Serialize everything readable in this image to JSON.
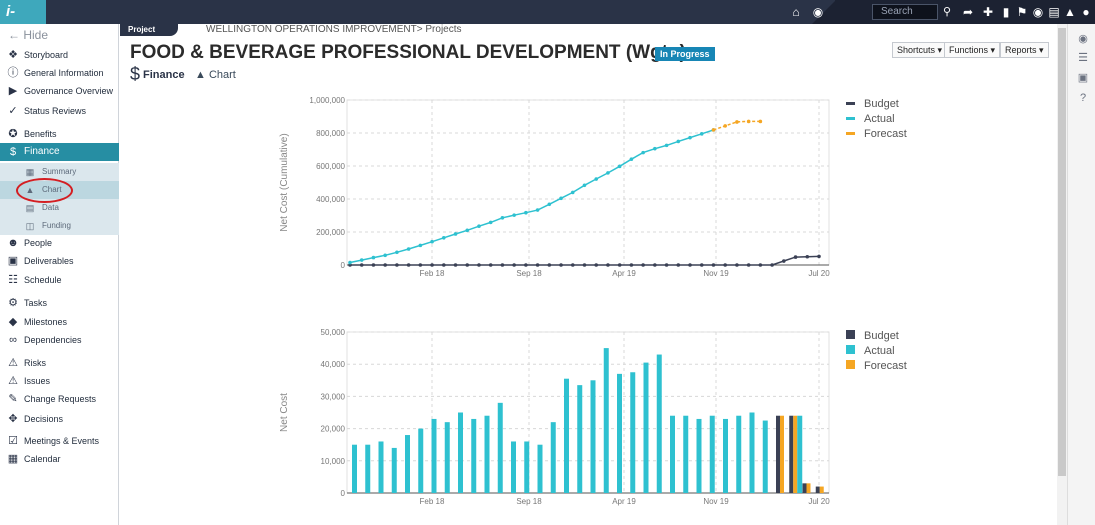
{
  "app": {
    "logo": "i-Sign"
  },
  "topbar": {
    "search_placeholder": "Search",
    "icons": [
      "home-icon",
      "globe-icon",
      "search-icon",
      "share-icon",
      "plus-icon",
      "bookmark-icon",
      "flag-icon",
      "chat-icon",
      "document-icon",
      "bell-icon",
      "user-icon"
    ]
  },
  "sidebar": {
    "hide": "Hide",
    "items": [
      {
        "label": "Storyboard",
        "icon": "storyboard-icon"
      },
      {
        "label": "General Information",
        "icon": "info-icon"
      },
      {
        "label": "Governance Overview",
        "icon": "governance-icon"
      },
      {
        "label": "Status Reviews",
        "icon": "check-icon"
      },
      {
        "label": "Benefits",
        "icon": "award-icon"
      },
      {
        "label": "Finance",
        "icon": "dollar-icon",
        "active": true
      },
      {
        "label": "People",
        "icon": "people-icon"
      },
      {
        "label": "Deliverables",
        "icon": "truck-icon"
      },
      {
        "label": "Schedule",
        "icon": "schedule-icon"
      },
      {
        "label": "Tasks",
        "icon": "tasks-icon"
      },
      {
        "label": "Milestones",
        "icon": "diamond-icon"
      },
      {
        "label": "Dependencies",
        "icon": "link-icon"
      },
      {
        "label": "Risks",
        "icon": "warning-icon"
      },
      {
        "label": "Issues",
        "icon": "alert-icon"
      },
      {
        "label": "Change Requests",
        "icon": "change-icon"
      },
      {
        "label": "Decisions",
        "icon": "decision-icon"
      },
      {
        "label": "Meetings & Events",
        "icon": "calendar-check-icon"
      },
      {
        "label": "Calendar",
        "icon": "calendar-icon"
      }
    ],
    "finance_sub": [
      {
        "label": "Summary",
        "icon": "grid-icon"
      },
      {
        "label": "Chart",
        "icon": "area-chart-icon",
        "selected": true
      },
      {
        "label": "Data",
        "icon": "table-icon"
      },
      {
        "label": "Funding",
        "icon": "database-icon"
      }
    ]
  },
  "header": {
    "tag": "Project",
    "breadcrumb": "WELLINGTON OPERATIONS IMPROVEMENT> Projects",
    "title": "FOOD & BEVERAGE PROFESSIONAL DEVELOPMENT (Wgtn)",
    "status": "In Progress",
    "buttons": [
      "Shortcuts ▾",
      "Functions ▾",
      "Reports ▾"
    ],
    "section": "Finance",
    "subsection": "Chart"
  },
  "colors": {
    "budget": "#3b4155",
    "actual": "#2ec1d0",
    "forecast": "#f5a623",
    "accent": "#268ea3",
    "topbar": "#2a3347"
  },
  "chart_data": [
    {
      "type": "line",
      "ylabel": "Net Cost (Cumulative)",
      "ylim": [
        0,
        1000000
      ],
      "yticks": [
        "0",
        "200,000",
        "400,000",
        "600,000",
        "800,000",
        "1,000,000"
      ],
      "x_tick_labels": [
        "Feb 18",
        "Sep 18",
        "Apr 19",
        "Nov 19",
        "Jul 20"
      ],
      "legend": [
        "Budget",
        "Actual",
        "Forecast"
      ],
      "legend_position": "right",
      "grid": true,
      "series": [
        {
          "name": "Budget",
          "values": [
            0,
            0,
            0,
            0,
            0,
            0,
            0,
            0,
            0,
            0,
            0,
            0,
            0,
            0,
            0,
            0,
            0,
            0,
            0,
            0,
            0,
            0,
            0,
            0,
            0,
            0,
            0,
            0,
            0,
            0,
            0,
            0,
            0,
            0,
            0,
            0,
            0,
            24000,
            48000,
            50000,
            52000
          ]
        },
        {
          "name": "Actual",
          "values": [
            15000,
            30000,
            45000,
            59000,
            77000,
            97000,
            119000,
            141000,
            165000,
            188000,
            210000,
            235000,
            258000,
            286000,
            302000,
            317000,
            333000,
            368000,
            404000,
            440000,
            483000,
            521000,
            558000,
            598000,
            641000,
            681000,
            705000,
            725000,
            749000,
            772000,
            795000,
            819000
          ]
        },
        {
          "name": "Forecast",
          "start_index": 31,
          "values": [
            819000,
            843000,
            867000,
            870000,
            870000
          ]
        }
      ]
    },
    {
      "type": "bar",
      "ylabel": "Net Cost",
      "ylim": [
        0,
        50000
      ],
      "yticks": [
        "0",
        "10,000",
        "20,000",
        "30,000",
        "40,000",
        "50,000"
      ],
      "x_tick_labels": [
        "Feb 18",
        "Sep 18",
        "Apr 19",
        "Nov 19",
        "Jul 20"
      ],
      "legend": [
        "Budget",
        "Actual",
        "Forecast"
      ],
      "legend_position": "right",
      "grid": true,
      "series": [
        {
          "name": "Budget",
          "values": [
            0,
            0,
            0,
            0,
            0,
            0,
            0,
            0,
            0,
            0,
            0,
            0,
            0,
            0,
            0,
            0,
            0,
            0,
            0,
            0,
            0,
            0,
            0,
            0,
            0,
            0,
            0,
            0,
            0,
            0,
            0,
            0,
            24000,
            24000,
            3000,
            2000
          ]
        },
        {
          "name": "Actual",
          "values": [
            15000,
            15000,
            16000,
            14000,
            18000,
            20000,
            23000,
            22000,
            25000,
            23000,
            24000,
            28000,
            16000,
            16000,
            15000,
            22000,
            35500,
            33500,
            35000,
            45000,
            37000,
            37500,
            40500,
            43000,
            24000,
            24000,
            23000,
            24000,
            23000,
            24000,
            25000,
            22500,
            0,
            24000,
            0,
            0
          ]
        },
        {
          "name": "Forecast",
          "values": [
            0,
            0,
            0,
            0,
            0,
            0,
            0,
            0,
            0,
            0,
            0,
            0,
            0,
            0,
            0,
            0,
            0,
            0,
            0,
            0,
            0,
            0,
            0,
            0,
            0,
            0,
            0,
            0,
            0,
            0,
            0,
            0,
            24000,
            24000,
            3000,
            2000
          ]
        }
      ]
    }
  ]
}
